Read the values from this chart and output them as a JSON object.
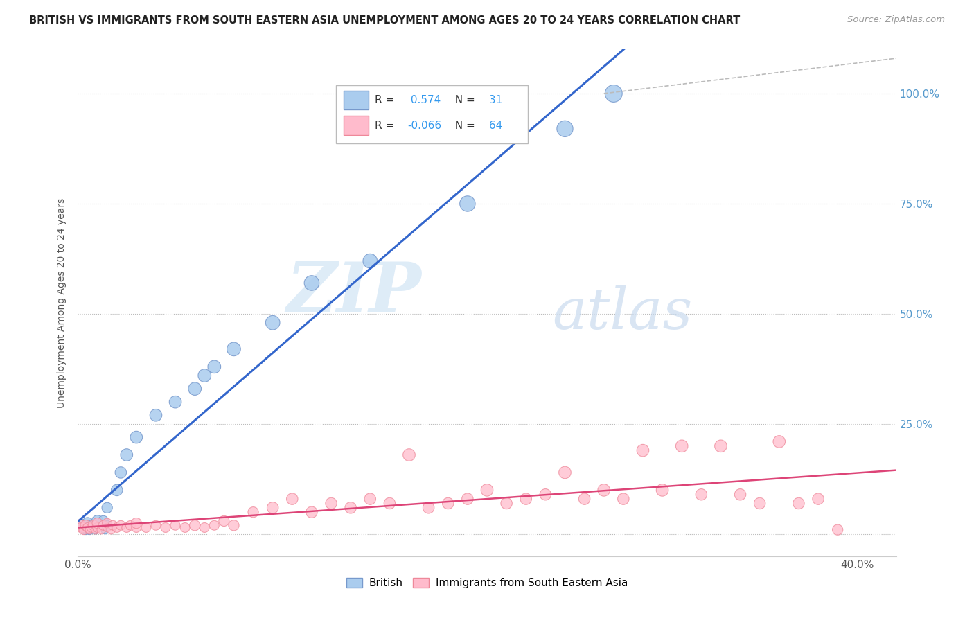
{
  "title": "BRITISH VS IMMIGRANTS FROM SOUTH EASTERN ASIA UNEMPLOYMENT AMONG AGES 20 TO 24 YEARS CORRELATION CHART",
  "source": "Source: ZipAtlas.com",
  "ylabel": "Unemployment Among Ages 20 to 24 years",
  "xlim": [
    0.0,
    0.42
  ],
  "ylim": [
    -0.05,
    1.1
  ],
  "x_tick_labels": [
    "0.0%",
    "40.0%"
  ],
  "y_tick_labels": [
    "",
    "25.0%",
    "50.0%",
    "75.0%",
    "100.0%"
  ],
  "y_ticks": [
    0.0,
    0.25,
    0.5,
    0.75,
    1.0
  ],
  "british_R": 0.574,
  "british_N": 31,
  "immigrant_R": -0.066,
  "immigrant_N": 64,
  "british_color": "#AACCEE",
  "british_edge_color": "#7799CC",
  "british_line_color": "#3366CC",
  "immigrant_color": "#FFBBCC",
  "immigrant_edge_color": "#EE8899",
  "immigrant_line_color": "#DD4477",
  "watermark_zip": "ZIP",
  "watermark_atlas": "atlas",
  "background_color": "#FFFFFF",
  "british_x": [
    0.002,
    0.003,
    0.004,
    0.005,
    0.006,
    0.007,
    0.008,
    0.009,
    0.01,
    0.01,
    0.012,
    0.013,
    0.014,
    0.015,
    0.015,
    0.02,
    0.022,
    0.025,
    0.03,
    0.04,
    0.05,
    0.06,
    0.065,
    0.07,
    0.08,
    0.1,
    0.12,
    0.15,
    0.2,
    0.25,
    0.275
  ],
  "british_y": [
    0.02,
    0.015,
    0.01,
    0.025,
    0.01,
    0.02,
    0.015,
    0.01,
    0.025,
    0.03,
    0.02,
    0.03,
    0.01,
    0.02,
    0.06,
    0.1,
    0.14,
    0.18,
    0.22,
    0.27,
    0.3,
    0.33,
    0.36,
    0.38,
    0.42,
    0.48,
    0.57,
    0.62,
    0.75,
    0.92,
    1.0
  ],
  "british_sizes": [
    40,
    30,
    25,
    35,
    25,
    30,
    25,
    20,
    30,
    35,
    25,
    30,
    20,
    25,
    30,
    35,
    35,
    40,
    40,
    40,
    40,
    45,
    45,
    45,
    50,
    55,
    60,
    55,
    65,
    70,
    80
  ],
  "immigrant_x": [
    0.001,
    0.002,
    0.003,
    0.004,
    0.005,
    0.006,
    0.007,
    0.008,
    0.009,
    0.01,
    0.01,
    0.012,
    0.013,
    0.015,
    0.015,
    0.017,
    0.018,
    0.02,
    0.022,
    0.025,
    0.027,
    0.03,
    0.03,
    0.035,
    0.04,
    0.045,
    0.05,
    0.055,
    0.06,
    0.065,
    0.07,
    0.075,
    0.08,
    0.09,
    0.1,
    0.11,
    0.12,
    0.13,
    0.14,
    0.15,
    0.16,
    0.17,
    0.18,
    0.19,
    0.2,
    0.21,
    0.22,
    0.23,
    0.24,
    0.25,
    0.26,
    0.27,
    0.28,
    0.29,
    0.3,
    0.31,
    0.32,
    0.33,
    0.34,
    0.35,
    0.36,
    0.37,
    0.38,
    0.39
  ],
  "immigrant_y": [
    0.02,
    0.015,
    0.01,
    0.02,
    0.015,
    0.01,
    0.015,
    0.02,
    0.01,
    0.015,
    0.025,
    0.01,
    0.02,
    0.015,
    0.025,
    0.01,
    0.02,
    0.015,
    0.02,
    0.015,
    0.02,
    0.015,
    0.025,
    0.015,
    0.02,
    0.015,
    0.02,
    0.015,
    0.02,
    0.015,
    0.02,
    0.03,
    0.02,
    0.05,
    0.06,
    0.08,
    0.05,
    0.07,
    0.06,
    0.08,
    0.07,
    0.18,
    0.06,
    0.07,
    0.08,
    0.1,
    0.07,
    0.08,
    0.09,
    0.14,
    0.08,
    0.1,
    0.08,
    0.19,
    0.1,
    0.2,
    0.09,
    0.2,
    0.09,
    0.07,
    0.21,
    0.07,
    0.08,
    0.01
  ],
  "immigrant_sizes": [
    35,
    30,
    25,
    30,
    25,
    20,
    25,
    30,
    20,
    25,
    30,
    20,
    25,
    20,
    25,
    20,
    25,
    25,
    25,
    25,
    25,
    25,
    30,
    25,
    25,
    25,
    25,
    25,
    30,
    25,
    25,
    30,
    30,
    30,
    35,
    35,
    35,
    35,
    35,
    35,
    35,
    40,
    35,
    35,
    35,
    40,
    35,
    35,
    35,
    40,
    35,
    40,
    35,
    40,
    40,
    40,
    35,
    40,
    35,
    35,
    40,
    35,
    35,
    30
  ]
}
